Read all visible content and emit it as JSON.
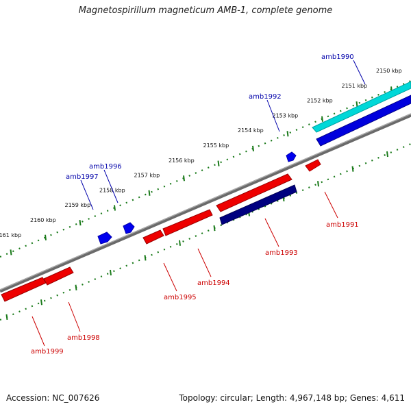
{
  "title": "Magnetospirillum magneticum AMB-1, complete genome",
  "footer": {
    "accession": "Accession: NC_007626",
    "topology": "Topology: circular; Length: 4,967,148 bp; Genes: 4,611"
  },
  "colors": {
    "backbone": "#7a7a7a",
    "ticks": "#1a7a1a",
    "forward_label": "#0000aa",
    "reverse_label": "#cc0000",
    "forward_gene": "#0000ee",
    "reverse_gene": "#ee0000",
    "highlight_cyan": "#00e0e0",
    "highlight_navy": "#000080"
  },
  "ticks": [
    {
      "label": "2150 kbp"
    },
    {
      "label": "2151 kbp"
    },
    {
      "label": "2152 kbp"
    },
    {
      "label": "2153 kbp"
    },
    {
      "label": "2154 kbp"
    },
    {
      "label": "2155 kbp"
    },
    {
      "label": "2156 kbp"
    },
    {
      "label": "2157 kbp"
    },
    {
      "label": "2158 kbp"
    },
    {
      "label": "2159 kbp"
    },
    {
      "label": "2160 kbp"
    },
    {
      "label": "2161 kbp"
    }
  ],
  "genes": [
    {
      "id": "amb1990",
      "strand": "forward"
    },
    {
      "id": "amb1991",
      "strand": "reverse"
    },
    {
      "id": "amb1992",
      "strand": "forward"
    },
    {
      "id": "amb1993",
      "strand": "reverse"
    },
    {
      "id": "amb1994",
      "strand": "reverse"
    },
    {
      "id": "amb1995",
      "strand": "reverse"
    },
    {
      "id": "amb1996",
      "strand": "forward"
    },
    {
      "id": "amb1997",
      "strand": "forward"
    },
    {
      "id": "amb1998",
      "strand": "reverse"
    },
    {
      "id": "amb1999",
      "strand": "reverse"
    }
  ]
}
